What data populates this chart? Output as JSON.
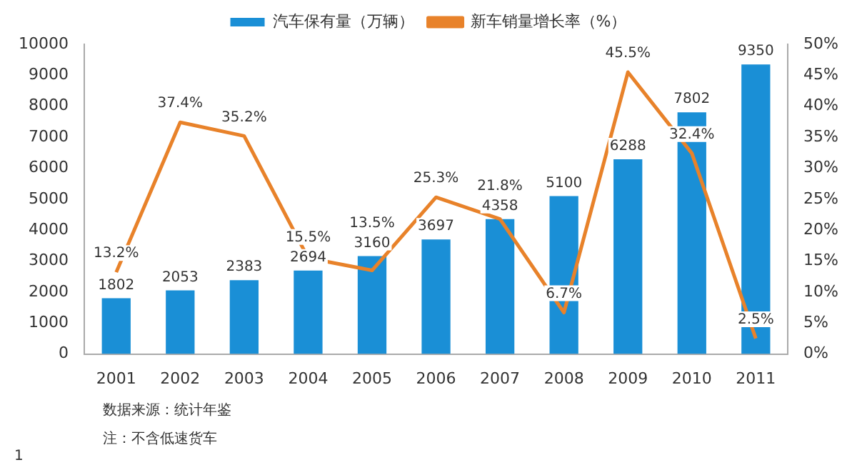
{
  "chart_data": {
    "type": "bar",
    "categories": [
      "2001",
      "2002",
      "2003",
      "2004",
      "2005",
      "2006",
      "2007",
      "2008",
      "2009",
      "2010",
      "2011"
    ],
    "series": [
      {
        "name": "汽车保有量（万辆）",
        "color": "#1a8fd6",
        "values": [
          1802,
          2053,
          2383,
          2694,
          3160,
          3697,
          4358,
          5100,
          6288,
          7802,
          9350
        ],
        "value_labels": [
          "1802",
          "2053",
          "2383",
          "2694",
          "3160",
          "3697",
          "4358",
          "5100",
          "6288",
          "7802",
          "9350"
        ]
      },
      {
        "name": "新车销量增长率（%）",
        "type": "line",
        "axis": "y2",
        "color": "#e8822a",
        "marker": "none",
        "values": [
          13.2,
          37.4,
          35.2,
          15.5,
          13.5,
          25.3,
          21.8,
          6.7,
          45.5,
          32.4,
          2.5
        ],
        "value_labels": [
          "13.2%",
          "37.4%",
          "35.2%",
          "15.5%",
          "13.5%",
          "25.3%",
          "21.8%",
          "6.7%",
          "45.5%",
          "32.4%",
          "2.5%"
        ]
      }
    ],
    "ylim": [
      0,
      10000
    ],
    "yticks": [
      0,
      1000,
      2000,
      3000,
      4000,
      5000,
      6000,
      7000,
      8000,
      9000,
      10000
    ],
    "y2lim": [
      0,
      50
    ],
    "y2ticks": [
      {
        "value": 0,
        "label": "0%"
      },
      {
        "value": 5,
        "label": "5%"
      },
      {
        "value": 10,
        "label": "10%"
      },
      {
        "value": 15,
        "label": "15%"
      },
      {
        "value": 20,
        "label": "20%"
      },
      {
        "value": 25,
        "label": "25%"
      },
      {
        "value": 30,
        "label": "30%"
      },
      {
        "value": 35,
        "label": "35%"
      },
      {
        "value": 40,
        "label": "40%"
      },
      {
        "value": 45,
        "label": "45%"
      },
      {
        "value": 50,
        "label": "50%"
      }
    ],
    "grid": false,
    "legend": "top",
    "annotations": [
      "数据来源：统计年鉴",
      "注：不含低速货车",
      "1"
    ]
  }
}
